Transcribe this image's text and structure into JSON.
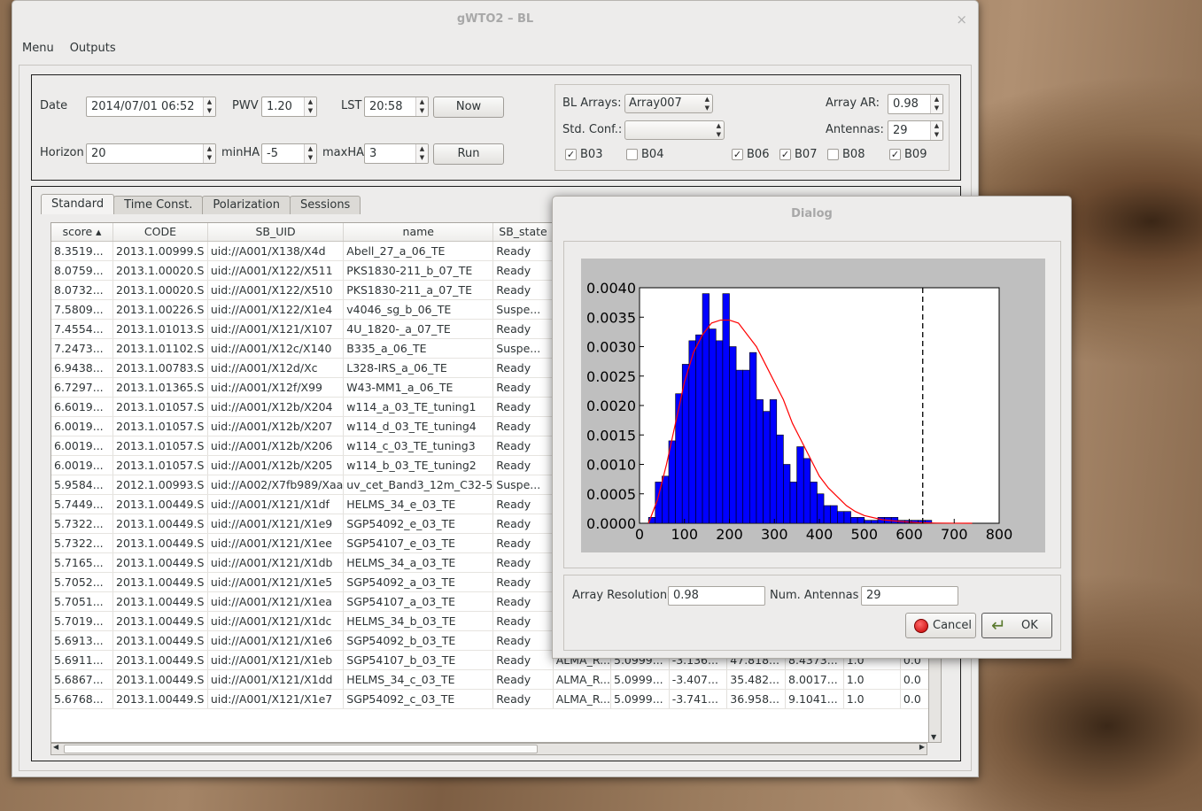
{
  "window": {
    "title": "gWTO2 – BL",
    "close": "×"
  },
  "menu": {
    "items": [
      "Menu",
      "Outputs"
    ]
  },
  "controls": {
    "date_label": "Date",
    "date_value": "2014/07/01 06:52",
    "pwv_label": "PWV",
    "pwv_value": "1.20",
    "lst_label": "LST",
    "lst_value": "20:58",
    "now_button": "Now",
    "horizon_label": "Horizon",
    "horizon_value": "20",
    "minha_label": "minHA",
    "minha_value": "-5",
    "maxha_label": "maxHA",
    "maxha_value": "3",
    "run_button": "Run"
  },
  "bl_panel": {
    "arrays_label": "BL Arrays:",
    "arrays_value": "Array007",
    "std_conf_label": "Std. Conf.:",
    "std_conf_value": "",
    "array_ar_label": "Array AR:",
    "array_ar_value": "0.98",
    "antennas_label": "Antennas:",
    "antennas_value": "29",
    "bands": [
      {
        "label": "B03",
        "checked": true
      },
      {
        "label": "B04",
        "checked": false
      },
      {
        "label": "B06",
        "checked": true
      },
      {
        "label": "B07",
        "checked": true
      },
      {
        "label": "B08",
        "checked": false
      },
      {
        "label": "B09",
        "checked": true
      }
    ]
  },
  "tabs": [
    "Standard",
    "Time Const.",
    "Polarization",
    "Sessions"
  ],
  "table": {
    "headers": [
      "score ▴",
      "CODE",
      "SB_UID",
      "name",
      "SB_state",
      "",
      "",
      "",
      "",
      "",
      "",
      ""
    ],
    "rows": [
      [
        "8.3519...",
        "2013.1.00999.S",
        "uid://A001/X138/X4d",
        "Abell_27_a_06_TE",
        "Ready",
        "",
        "",
        "",
        "",
        "",
        "",
        ""
      ],
      [
        "8.0759...",
        "2013.1.00020.S",
        "uid://A001/X122/X511",
        "PKS1830-211_b_07_TE",
        "Ready",
        "",
        "",
        "",
        "",
        "",
        "",
        ""
      ],
      [
        "8.0732...",
        "2013.1.00020.S",
        "uid://A001/X122/X510",
        "PKS1830-211_a_07_TE",
        "Ready",
        "",
        "",
        "",
        "",
        "",
        "",
        ""
      ],
      [
        "7.5809...",
        "2013.1.00226.S",
        "uid://A001/X122/X1e4",
        "v4046_sg_b_06_TE",
        "Suspe...",
        "",
        "",
        "",
        "",
        "",
        "",
        ""
      ],
      [
        "7.4554...",
        "2013.1.01013.S",
        "uid://A001/X121/X107",
        "4U_1820-_a_07_TE",
        "Ready",
        "",
        "",
        "",
        "",
        "",
        "",
        ""
      ],
      [
        "7.2473...",
        "2013.1.01102.S",
        "uid://A001/X12c/X140",
        "B335_a_06_TE",
        "Suspe...",
        "",
        "",
        "",
        "",
        "",
        "",
        ""
      ],
      [
        "6.9438...",
        "2013.1.00783.S",
        "uid://A001/X12d/Xc",
        "L328-IRS_a_06_TE",
        "Ready",
        "",
        "",
        "",
        "",
        "",
        "",
        ""
      ],
      [
        "6.7297...",
        "2013.1.01365.S",
        "uid://A001/X12f/X99",
        "W43-MM1_a_06_TE",
        "Ready",
        "",
        "",
        "",
        "",
        "",
        "",
        ""
      ],
      [
        "6.6019...",
        "2013.1.01057.S",
        "uid://A001/X12b/X204",
        "w114_a_03_TE_tuning1",
        "Ready",
        "",
        "",
        "",
        "",
        "",
        "",
        ""
      ],
      [
        "6.0019...",
        "2013.1.01057.S",
        "uid://A001/X12b/X207",
        "w114_d_03_TE_tuning4",
        "Ready",
        "",
        "",
        "",
        "",
        "",
        "",
        ""
      ],
      [
        "6.0019...",
        "2013.1.01057.S",
        "uid://A001/X12b/X206",
        "w114_c_03_TE_tuning3",
        "Ready",
        "",
        "",
        "",
        "",
        "",
        "",
        ""
      ],
      [
        "6.0019...",
        "2013.1.01057.S",
        "uid://A001/X12b/X205",
        "w114_b_03_TE_tuning2",
        "Ready",
        "",
        "",
        "",
        "",
        "",
        "",
        ""
      ],
      [
        "5.9584...",
        "2012.1.00993.S",
        "uid://A002/X7fb989/Xaa",
        "uv_cet_Band3_12m_C32-5",
        "Suspe...",
        "",
        "",
        "",
        "",
        "",
        "",
        ""
      ],
      [
        "5.7449...",
        "2013.1.00449.S",
        "uid://A001/X121/X1df",
        "HELMS_34_e_03_TE",
        "Ready",
        "",
        "",
        "",
        "",
        "",
        "",
        ""
      ],
      [
        "5.7322...",
        "2013.1.00449.S",
        "uid://A001/X121/X1e9",
        "SGP54092_e_03_TE",
        "Ready",
        "",
        "",
        "",
        "",
        "",
        "",
        ""
      ],
      [
        "5.7322...",
        "2013.1.00449.S",
        "uid://A001/X121/X1ee",
        "SGP54107_e_03_TE",
        "Ready",
        "",
        "",
        "",
        "",
        "",
        "",
        ""
      ],
      [
        "5.7165...",
        "2013.1.00449.S",
        "uid://A001/X121/X1db",
        "HELMS_34_a_03_TE",
        "Ready",
        "",
        "",
        "",
        "",
        "",
        "",
        ""
      ],
      [
        "5.7052...",
        "2013.1.00449.S",
        "uid://A001/X121/X1e5",
        "SGP54092_a_03_TE",
        "Ready",
        "",
        "",
        "",
        "",
        "",
        "",
        ""
      ],
      [
        "5.7051...",
        "2013.1.00449.S",
        "uid://A001/X121/X1ea",
        "SGP54107_a_03_TE",
        "Ready",
        "",
        "",
        "",
        "",
        "",
        "",
        ""
      ],
      [
        "5.7019...",
        "2013.1.00449.S",
        "uid://A001/X121/X1dc",
        "HELMS_34_b_03_TE",
        "Ready",
        "",
        "",
        "",
        "",
        "",
        "",
        ""
      ],
      [
        "5.6913...",
        "2013.1.00449.S",
        "uid://A001/X121/X1e6",
        "SGP54092_b_03_TE",
        "Ready",
        "ALMA_R...",
        "5.0999...",
        "-3.741...",
        "36.958...",
        "9.1041...",
        "1.0",
        "0.0"
      ],
      [
        "5.6911...",
        "2013.1.00449.S",
        "uid://A001/X121/X1eb",
        "SGP54107_b_03_TE",
        "Ready",
        "ALMA_R...",
        "5.0999...",
        "-3.136...",
        "47.818...",
        "8.4373...",
        "1.0",
        "0.0"
      ],
      [
        "5.6867...",
        "2013.1.00449.S",
        "uid://A001/X121/X1dd",
        "HELMS_34_c_03_TE",
        "Ready",
        "ALMA_R...",
        "5.0999...",
        "-3.407...",
        "35.482...",
        "8.0017...",
        "1.0",
        "0.0"
      ],
      [
        "5.6768...",
        "2013.1.00449.S",
        "uid://A001/X121/X1e7",
        "SGP54092_c_03_TE",
        "Ready",
        "ALMA_R...",
        "5.0999...",
        "-3.741...",
        "36.958...",
        "9.1041...",
        "1.0",
        "0.0"
      ]
    ]
  },
  "dialog": {
    "title": "Dialog",
    "array_resolution_label": "Array Resolution",
    "array_resolution_value": "0.98",
    "num_antennas_label": "Num. Antennas",
    "num_antennas_value": "29",
    "cancel_button": "Cancel",
    "ok_button": "OK"
  },
  "chart_data": {
    "type": "bar",
    "title": "",
    "xlabel": "",
    "ylabel": "",
    "xlim": [
      0,
      800
    ],
    "ylim": [
      0,
      0.004
    ],
    "xticks": [
      "0",
      "100",
      "200",
      "300",
      "400",
      "500",
      "600",
      "700",
      "800"
    ],
    "yticks": [
      "0.0000",
      "0.0005",
      "0.0010",
      "0.0015",
      "0.0020",
      "0.0025",
      "0.0030",
      "0.0035",
      "0.0040"
    ],
    "bar_color": "#0000ff",
    "bin_width": 15,
    "bin_starts": [
      20,
      35,
      50,
      65,
      80,
      95,
      110,
      125,
      140,
      155,
      170,
      185,
      200,
      215,
      230,
      245,
      260,
      275,
      290,
      305,
      320,
      335,
      350,
      365,
      380,
      395,
      410,
      425,
      440,
      455,
      470,
      485,
      500,
      515,
      530,
      545,
      560,
      575,
      590,
      605,
      620,
      635
    ],
    "values": [
      0.0001,
      0.0007,
      0.0008,
      0.0014,
      0.0022,
      0.0027,
      0.0031,
      0.0032,
      0.0039,
      0.0033,
      0.0031,
      0.0039,
      0.003,
      0.0026,
      0.0026,
      0.0029,
      0.0021,
      0.0019,
      0.0021,
      0.0015,
      0.001,
      0.0007,
      0.0013,
      0.0011,
      0.0007,
      0.0005,
      0.0003,
      0.0003,
      0.0002,
      0.0002,
      0.0001,
      0.0001,
      5e-05,
      5e-05,
      0.0001,
      0.0001,
      0.0001,
      5e-05,
      5e-05,
      5e-05,
      5e-05,
      5e-05
    ],
    "fit_curve": {
      "color": "#ff0000",
      "points": [
        [
          20,
          0
        ],
        [
          40,
          0.0004
        ],
        [
          60,
          0.001
        ],
        [
          80,
          0.0017
        ],
        [
          100,
          0.0024
        ],
        [
          120,
          0.0029
        ],
        [
          140,
          0.0032
        ],
        [
          160,
          0.0034
        ],
        [
          180,
          0.00345
        ],
        [
          200,
          0.00345
        ],
        [
          220,
          0.0034
        ],
        [
          240,
          0.0032
        ],
        [
          260,
          0.003
        ],
        [
          280,
          0.0027
        ],
        [
          300,
          0.0024
        ],
        [
          320,
          0.0021
        ],
        [
          340,
          0.0017
        ],
        [
          360,
          0.0014
        ],
        [
          380,
          0.0011
        ],
        [
          400,
          0.0008
        ],
        [
          420,
          0.0006
        ],
        [
          440,
          0.00045
        ],
        [
          460,
          0.0003
        ],
        [
          480,
          0.0002
        ],
        [
          500,
          0.00013
        ],
        [
          540,
          6e-05
        ],
        [
          580,
          3e-05
        ],
        [
          620,
          1e-05
        ],
        [
          660,
          3e-06
        ],
        [
          700,
          1e-06
        ],
        [
          740,
          0
        ]
      ]
    },
    "vline_x": 630,
    "vline_style": "dashed"
  }
}
